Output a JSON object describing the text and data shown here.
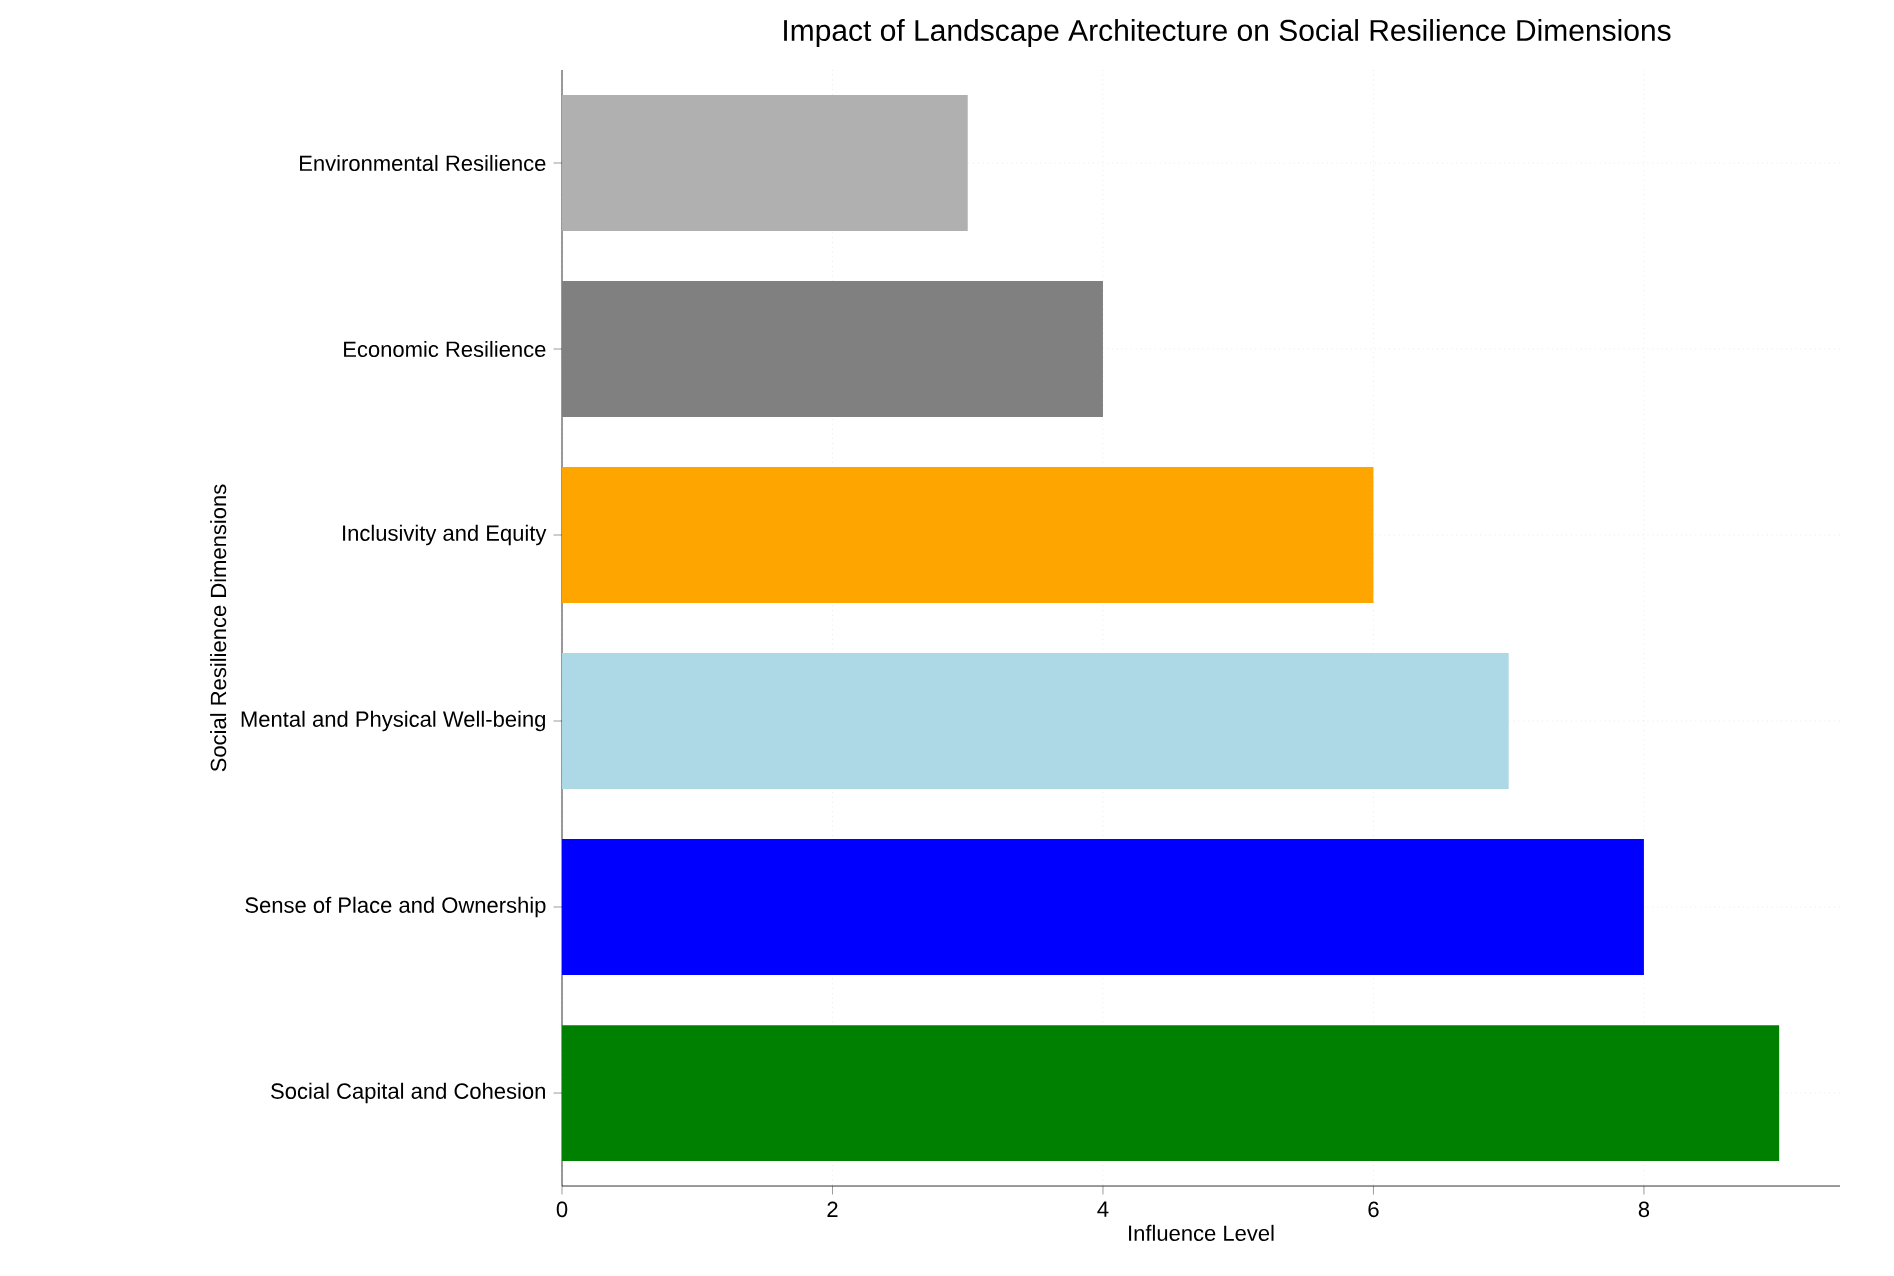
{
  "chart_data": {
    "type": "bar",
    "orientation": "horizontal",
    "title": "Impact of Landscape Architecture on Social Resilience Dimensions",
    "xlabel": "Influence Level",
    "ylabel": "Social Resilience Dimensions",
    "categories": [
      "Environmental Resilience",
      "Economic Resilience",
      "Inclusivity and Equity",
      "Mental and Physical Well-being",
      "Sense of Place and Ownership",
      "Social Capital and Cohesion"
    ],
    "values": [
      3,
      4,
      6,
      7,
      8,
      9
    ],
    "colors": [
      "#b0b0b0",
      "#808080",
      "#ffa500",
      "#add8e6",
      "#0000ff",
      "#008000"
    ],
    "xlim": [
      0,
      9.45
    ],
    "xticks": [
      0,
      2,
      4,
      6,
      8
    ],
    "grid": true
  }
}
